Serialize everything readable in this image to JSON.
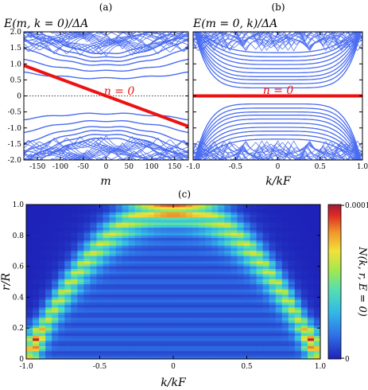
{
  "panels": [
    {
      "label": "(a)",
      "ylabel": "E(m, k = 0)/ΔA",
      "xlabel": "m",
      "xticks": [
        "-150",
        "-100",
        "-50",
        "0",
        "50",
        "100",
        "150"
      ],
      "yticks": [
        "2.0",
        "1.5",
        "1.0",
        "0.5",
        "0",
        "-0.5",
        "-1.0",
        "-1.5",
        "-2.0"
      ],
      "annotation": "n = 0"
    },
    {
      "label": "(b)",
      "ylabel": "E(m = 0, k)/ΔA",
      "xlabel": "k/kF",
      "xticks": [
        "-1.0",
        "-0.5",
        "0",
        "0.5",
        "1.0"
      ],
      "annotation": "n = 0"
    },
    {
      "label": "(c)",
      "ylabel": "r/R",
      "xlabel": "k/kF",
      "xticks": [
        "-1.0",
        "-0.5",
        "0",
        "0.5",
        "1.0"
      ],
      "yticks": [
        "1.0",
        "0.8",
        "0.6",
        "0.4",
        "0.2",
        "0"
      ],
      "colorbar_label": "N(k, r, E = 0)",
      "colorbar_ticks": [
        "0.0001",
        "0"
      ]
    }
  ],
  "colors": {
    "bands": "#4a6cf0",
    "highlight": "#ee1111",
    "axis": "#000000",
    "colormap": [
      "#1e22b8",
      "#2f6fe6",
      "#32b8e8",
      "#55dfb0",
      "#a6e84a",
      "#f2e03a",
      "#f0962a",
      "#e02a24",
      "#9e1c3a"
    ]
  },
  "chart_data": [
    {
      "type": "line",
      "panel": "(a)",
      "xlabel": "m",
      "ylabel": "E(m, k = 0)/ΔA",
      "xlim": [
        -180,
        180
      ],
      "ylim": [
        -2.0,
        2.0
      ],
      "zero_line": "dotted",
      "series": [
        {
          "name": "n = 0",
          "x": [
            -180,
            180
          ],
          "y": [
            0.95,
            -0.95
          ]
        }
      ],
      "bands_upper_min_at_m0": [
        0.55,
        0.78,
        0.96,
        1.08,
        1.2,
        1.32
      ],
      "bands_lower_max_at_m0": [
        -0.55,
        -0.78,
        -0.96,
        -1.08,
        -1.2,
        -1.32
      ]
    },
    {
      "type": "line",
      "panel": "(b)",
      "xlabel": "k/kF",
      "ylabel": "E(m = 0, k)/ΔA",
      "xlim": [
        -1.0,
        1.0
      ],
      "ylim": [
        -2.0,
        2.0
      ],
      "series": [
        {
          "name": "n = 0",
          "x": [
            -1.0,
            1.0
          ],
          "y": [
            0,
            0
          ]
        }
      ],
      "bands_at_k0": [
        0.25,
        0.38,
        0.5,
        0.6,
        0.72,
        0.85,
        0.98,
        1.1,
        1.22,
        1.35
      ]
    },
    {
      "type": "heatmap",
      "panel": "(c)",
      "xlabel": "k/kF",
      "ylabel": "r/R",
      "xlim": [
        -1.0,
        1.0
      ],
      "ylim": [
        0,
        1.0
      ],
      "colorbar": {
        "label": "N(k, r, E = 0)",
        "range": [
          0,
          0.0001
        ]
      },
      "ridge": {
        "description": "high density along r ≈ 1 - k²",
        "peak_regions": [
          {
            "k": -0.95,
            "r": 0.12,
            "level": 0.85
          },
          {
            "k": 0.95,
            "r": 0.12,
            "level": 0.85
          },
          {
            "k": 0.0,
            "r": 0.95,
            "level": 0.85
          }
        ]
      }
    }
  ]
}
